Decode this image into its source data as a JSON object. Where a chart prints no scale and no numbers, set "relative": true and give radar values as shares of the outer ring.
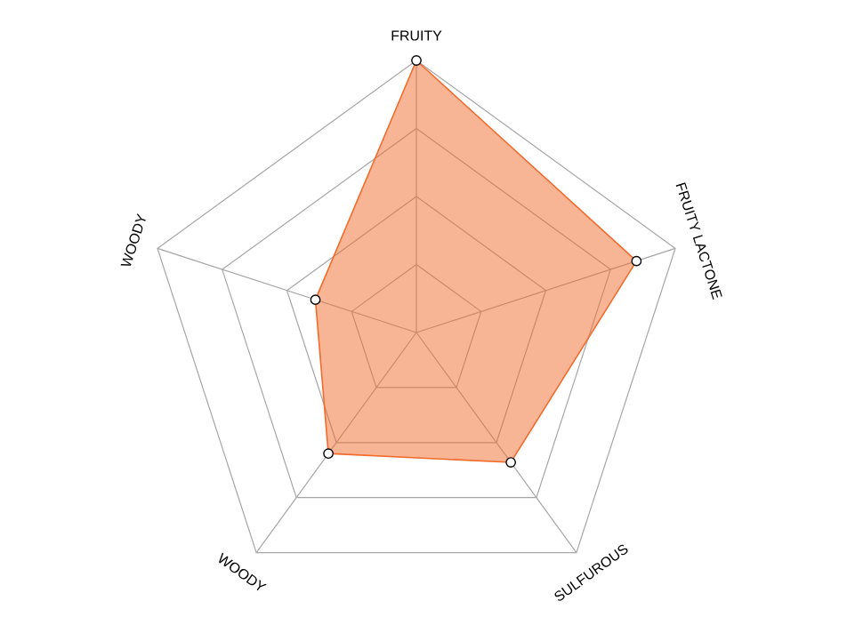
{
  "chart_data": {
    "type": "radar",
    "relative": true,
    "grid": true,
    "marker": "circle",
    "categories": [
      "FRUITY",
      "FRUITY LACTONE",
      "SULFUROUS",
      "WOODY",
      "WOODY"
    ],
    "series": [
      {
        "color": "#f26b2b",
        "values": [
          1,
          0.85,
          0.59,
          0.55,
          0.39
        ]
      }
    ]
  }
}
